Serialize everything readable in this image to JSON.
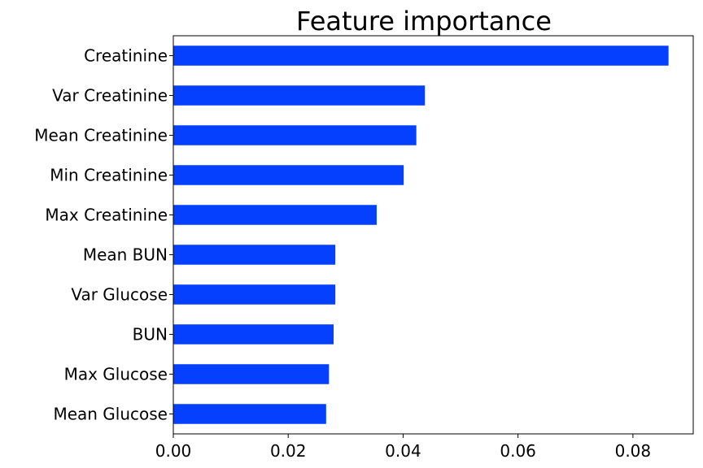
{
  "chart_data": {
    "type": "bar",
    "orientation": "horizontal",
    "title": "Feature importance",
    "xlabel": "",
    "ylabel": "",
    "categories": [
      "Creatinine",
      "Var Creatinine",
      "Mean Creatinine",
      "Min Creatinine",
      "Max Creatinine",
      "Mean BUN",
      "Var Glucose",
      "BUN",
      "Max Glucose",
      "Mean Glucose"
    ],
    "values": [
      0.0862,
      0.0438,
      0.0423,
      0.0401,
      0.0354,
      0.0282,
      0.0282,
      0.0279,
      0.0271,
      0.0266
    ],
    "xlim": [
      0,
      0.0905
    ],
    "xticks": [
      "0.00",
      "0.02",
      "0.04",
      "0.06",
      "0.08"
    ],
    "bar_color": "#0540ff",
    "grid": false,
    "legend": "none"
  }
}
